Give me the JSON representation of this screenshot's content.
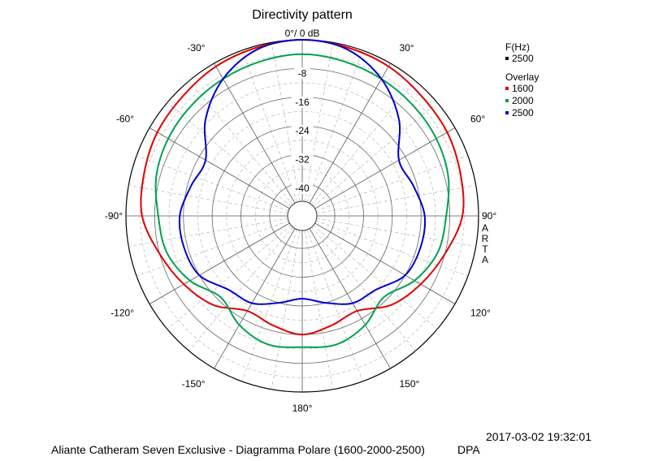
{
  "chart_data": {
    "type": "polar",
    "title": "Directivity pattern",
    "top_label": "0°/ 0 dB",
    "angle_labels": [
      "30°",
      "60°",
      "90°",
      "120°",
      "150°",
      "180°",
      "-150°",
      "-120°",
      "-90°",
      "-60°",
      "-30°"
    ],
    "radial_labels": [
      "-8",
      "-16",
      "-24",
      "-32",
      "-40"
    ],
    "radial_range_db": [
      -45,
      0
    ],
    "grid": true,
    "legend_position": "top-right",
    "legend": {
      "title": "F(Hz)",
      "current": "2500",
      "overlay_title": "Overlay",
      "entries": [
        {
          "label": "1600",
          "color": "#e00000"
        },
        {
          "label": "2000",
          "color": "#00a050"
        },
        {
          "label": "2500",
          "color": "#0000cc"
        }
      ]
    },
    "side_label": [
      "A",
      "R",
      "T",
      "A"
    ],
    "angles_deg": [
      0,
      15,
      30,
      45,
      60,
      75,
      90,
      105,
      120,
      135,
      150,
      165,
      180,
      195,
      210,
      225,
      240,
      255,
      270,
      285,
      300,
      315,
      330,
      345
    ],
    "series": [
      {
        "name": "1600",
        "color": "#e00000",
        "values_db": [
          0,
          -0.5,
          -1,
          -2,
          -2.5,
          -3.5,
          -4.5,
          -8,
          -11,
          -14,
          -18.5,
          -17.5,
          -16,
          -17.5,
          -18.5,
          -14,
          -11,
          -8,
          -4.5,
          -3.5,
          -2.5,
          -2,
          -1,
          -0.5
        ]
      },
      {
        "name": "2000",
        "color": "#00a050",
        "values_db": [
          -4,
          -4.5,
          -5,
          -5.5,
          -6,
          -7,
          -9,
          -10,
          -13,
          -17,
          -14,
          -12,
          -12.5,
          -12,
          -14,
          -17,
          -13,
          -10,
          -9,
          -7,
          -6,
          -5.5,
          -5,
          -4.5
        ]
      },
      {
        "name": "2500",
        "color": "#0000cc",
        "values_db": [
          0,
          -1,
          -5,
          -11,
          -18,
          -17,
          -15,
          -15,
          -16,
          -20,
          -21,
          -24,
          -26,
          -24,
          -21,
          -20,
          -16,
          -15,
          -15,
          -17,
          -18,
          -11,
          -5,
          -1
        ]
      }
    ]
  },
  "footer": {
    "timestamp": "2017-03-02  19:32:01",
    "caption": "Aliante Catheram Seven Exclusive - Diagramma Polare (1600-2000-2500)",
    "tag": "DPA"
  }
}
